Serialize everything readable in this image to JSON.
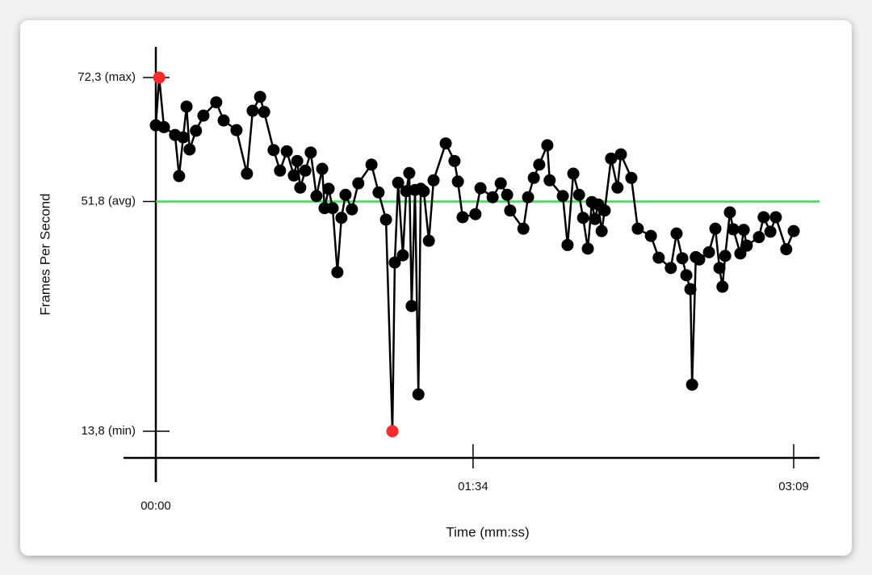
{
  "chart_data": {
    "type": "line",
    "x_label": "Time (mm:ss)",
    "y_label": "Frames Per Second",
    "x": [
      0.0,
      1.0,
      2.4,
      5.7,
      6.9,
      8.1,
      9.1,
      10.0,
      11.9,
      14.1,
      17.9,
      20.1,
      23.9,
      27.0,
      28.7,
      30.9,
      32.1,
      34.9,
      36.8,
      38.8,
      40.9,
      41.9,
      42.8,
      44.3,
      45.9,
      47.6,
      49.3,
      50.0,
      51.2,
      52.4,
      53.8,
      55.0,
      56.2,
      58.1,
      60.0,
      63.9,
      66.0,
      68.2,
      70.1,
      70.8,
      71.8,
      73.2,
      74.2,
      75.1,
      75.8,
      76.8,
      77.8,
      78.5,
      79.4,
      80.9,
      82.3,
      85.9,
      88.5,
      89.5,
      90.9,
      94.7,
      96.2,
      99.8,
      102.2,
      104.1,
      105.0,
      108.9,
      110.3,
      112.0,
      113.6,
      116.0,
      116.7,
      120.6,
      122.0,
      123.7,
      125.4,
      126.6,
      128.0,
      129.2,
      130.1,
      131.1,
      132.1,
      133.0,
      134.9,
      136.8,
      137.8,
      140.9,
      142.8,
      146.7,
      149.0,
      152.6,
      154.3,
      156.0,
      157.2,
      158.4,
      158.9,
      160.0,
      161.0,
      163.9,
      165.8,
      167.0,
      167.9,
      168.7,
      170.1,
      171.1,
      173.2,
      174.2,
      175.1,
      178.7,
      180.1,
      182.1,
      183.7,
      186.8,
      189.0
    ],
    "series": [
      {
        "name": "FPS",
        "color": "#000000",
        "values": [
          64.4,
          72.3,
          64.1,
          62.8,
          56.0,
          62.4,
          67.5,
          60.4,
          63.5,
          66.0,
          68.2,
          65.2,
          63.6,
          56.4,
          66.8,
          69.1,
          66.6,
          60.3,
          56.9,
          60.1,
          56.1,
          58.5,
          54.1,
          56.9,
          59.9,
          52.7,
          57.2,
          50.7,
          53.9,
          50.7,
          40.1,
          49.1,
          52.9,
          50.5,
          54.8,
          57.9,
          53.3,
          48.8,
          13.8,
          41.7,
          54.9,
          42.9,
          53.5,
          56.5,
          34.5,
          53.7,
          19.9,
          53.9,
          53.5,
          45.3,
          55.3,
          61.4,
          58.5,
          55.1,
          49.2,
          49.7,
          54.0,
          52.5,
          54.8,
          52.9,
          50.3,
          47.3,
          52.5,
          55.7,
          57.9,
          61.1,
          55.3,
          52.7,
          44.6,
          56.4,
          52.9,
          49.1,
          44.0,
          51.7,
          48.9,
          51.3,
          46.9,
          50.3,
          58.9,
          54.1,
          59.6,
          55.7,
          47.3,
          46.1,
          42.5,
          40.8,
          46.5,
          42.4,
          39.6,
          37.3,
          21.5,
          42.6,
          42.2,
          43.4,
          47.3,
          40.8,
          37.7,
          42.8,
          50.0,
          47.2,
          43.2,
          47.1,
          44.5,
          45.9,
          49.2,
          46.8,
          49.2,
          43.9,
          46.9
        ]
      }
    ],
    "extreme_color": "#ff2a2a",
    "average_color": "#3ddc50",
    "xlim": [
      0,
      189
    ],
    "xticks": [
      {
        "value": 0,
        "label": "00:00"
      },
      {
        "value": 94,
        "label": "01:34"
      },
      {
        "value": 189,
        "label": "03:09"
      }
    ],
    "ylim": [
      8.8,
      77.1
    ],
    "yticks": [
      {
        "value": 13.8,
        "label": "13,8 (min)"
      },
      {
        "value": 51.8,
        "label": "51,8 (avg)"
      },
      {
        "value": 72.3,
        "label": "72,3 (max)"
      }
    ]
  }
}
